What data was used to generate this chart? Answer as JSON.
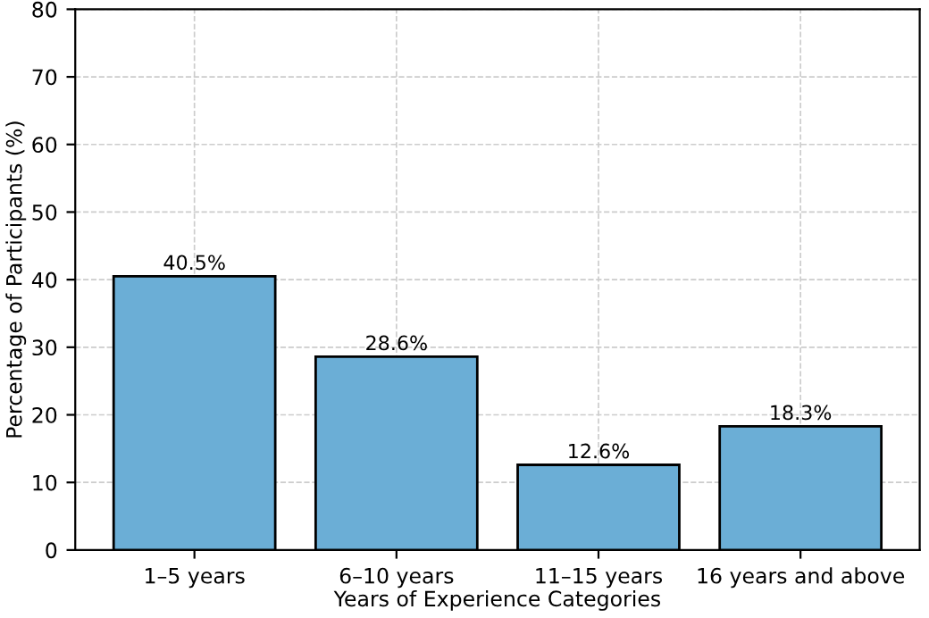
{
  "chart_data": {
    "type": "bar",
    "xlabel": "Years of Experience Categories",
    "ylabel": "Percentage of Participants (%)",
    "categories": [
      "1–5 years",
      "6–10 years",
      "11–15 years",
      "16 years and above"
    ],
    "values": [
      40.5,
      28.6,
      12.6,
      18.3
    ],
    "value_labels": [
      "40.5%",
      "28.6%",
      "12.6%",
      "18.3%"
    ],
    "color": "#6baed6",
    "ylim": [
      0,
      80
    ],
    "yticks": [
      0,
      10,
      20,
      30,
      40,
      50,
      60,
      70,
      80
    ],
    "grid": true
  }
}
